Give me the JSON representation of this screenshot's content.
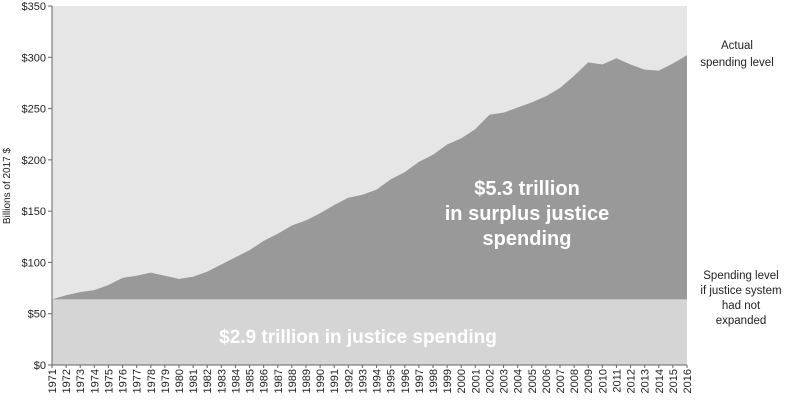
{
  "chart_data": {
    "type": "area",
    "title": "",
    "xlabel": "",
    "ylabel": "Billions of 2017 $",
    "ylim": [
      0,
      350
    ],
    "y_ticks": [
      "$0",
      "$50",
      "$100",
      "$150",
      "$200",
      "$250",
      "$300",
      "$350"
    ],
    "y_tick_values": [
      0,
      50,
      100,
      150,
      200,
      250,
      300,
      350
    ],
    "x": [
      "1971",
      "1972",
      "1973",
      "1974",
      "1975",
      "1976",
      "1977",
      "1978",
      "1979",
      "1980",
      "1981",
      "1982",
      "1983",
      "1984",
      "1985",
      "1986",
      "1987",
      "1988",
      "1989",
      "1990",
      "1991",
      "1992",
      "1993",
      "1994",
      "1995",
      "1996",
      "1997",
      "1998",
      "1999",
      "2000",
      "2001",
      "2002",
      "2003",
      "2004",
      "2005",
      "2006",
      "2007",
      "2008",
      "2009",
      "2010",
      "2011",
      "2012",
      "2013",
      "2014",
      "2015",
      "2016"
    ],
    "series": [
      {
        "name": "Actual spending level",
        "color": "#999999",
        "values": [
          64,
          68,
          71,
          73,
          78,
          85,
          87,
          90,
          87,
          84,
          86,
          91,
          98,
          105,
          112,
          121,
          128,
          136,
          141,
          148,
          156,
          163,
          166,
          171,
          181,
          188,
          198,
          205,
          215,
          221,
          230,
          244,
          246,
          251,
          256,
          262,
          270,
          282,
          295,
          293,
          299,
          293,
          288,
          287,
          294,
          302
        ]
      },
      {
        "name": "Spending level if justice system had not expanded",
        "color": "#d5d5d5",
        "values": [
          64,
          64,
          64,
          64,
          64,
          64,
          64,
          64,
          64,
          64,
          64,
          64,
          64,
          64,
          64,
          64,
          64,
          64,
          64,
          64,
          64,
          64,
          64,
          64,
          64,
          64,
          64,
          64,
          64,
          64,
          64,
          64,
          64,
          64,
          64,
          64,
          64,
          64,
          64,
          64,
          64,
          64,
          64,
          64,
          64,
          64
        ]
      }
    ],
    "annotations": {
      "surplus_line1": "$5.3 trillion",
      "surplus_line2": "in surplus justice",
      "surplus_line3": "spending",
      "base": "$2.9 trillion in justice spending",
      "actual_line1": "Actual",
      "actual_line2": "spending level",
      "baseline_line1": "Spending level",
      "baseline_line2": "if justice system",
      "baseline_line3": "had not",
      "baseline_line4": "expanded"
    },
    "colors": {
      "background": "#e6e6e6",
      "surplus_area": "#999999",
      "base_area": "#d5d5d5",
      "annotation_text": "#ffffff"
    },
    "grid": false
  }
}
